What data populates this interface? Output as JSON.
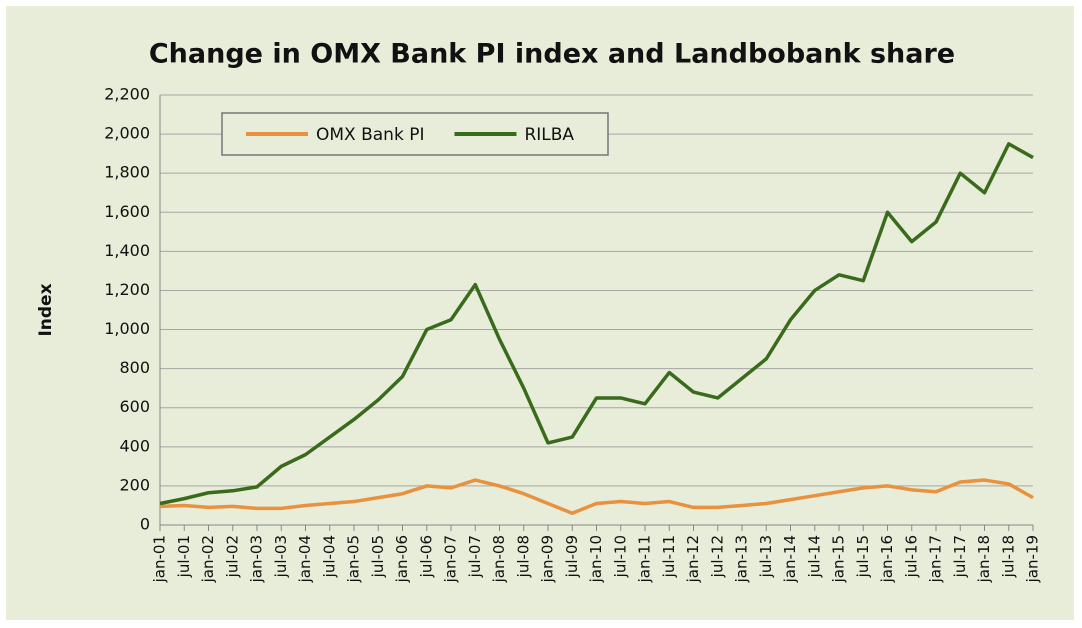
{
  "chart_data": {
    "type": "line",
    "title": "Change in OMX Bank PI index and Landbobank share",
    "y_label": "Index",
    "categories": [
      "jan-01",
      "jul-01",
      "jan-02",
      "jul-02",
      "jan-03",
      "jul-03",
      "jan-04",
      "jul-04",
      "jan-05",
      "jul-05",
      "jan-06",
      "jul-06",
      "jan-07",
      "jul-07",
      "jan-08",
      "jul-08",
      "jan-09",
      "jul-09",
      "jan-10",
      "jul-10",
      "jan-11",
      "jul-11",
      "jan-12",
      "jul-12",
      "jan-13",
      "jul-13",
      "jan-14",
      "jul-14",
      "jan-15",
      "jul-15",
      "jan-16",
      "jul-16",
      "jan-17",
      "jul-17",
      "jan-18",
      "jul-18",
      "jan-19"
    ],
    "series": [
      {
        "name": "OMX Bank PI",
        "color": "#e8913f",
        "values": [
          95,
          100,
          90,
          95,
          85,
          85,
          100,
          110,
          120,
          140,
          160,
          200,
          190,
          230,
          200,
          160,
          110,
          60,
          110,
          120,
          110,
          120,
          90,
          90,
          100,
          110,
          130,
          150,
          170,
          190,
          200,
          180,
          170,
          220,
          230,
          210,
          140
        ]
      },
      {
        "name": "RILBA",
        "color": "#3a6b1c",
        "values": [
          110,
          135,
          165,
          175,
          195,
          300,
          360,
          450,
          540,
          640,
          760,
          1000,
          1050,
          1230,
          950,
          700,
          420,
          450,
          650,
          650,
          620,
          780,
          680,
          650,
          750,
          850,
          1050,
          1200,
          1280,
          1250,
          1600,
          1450,
          1550,
          1800,
          1700,
          1950,
          1880
        ]
      }
    ],
    "ylim": [
      0,
      2200
    ],
    "yticks": [
      0,
      200,
      400,
      600,
      800,
      {
        "value": 1000,
        "label": "1,000"
      },
      {
        "value": 1200,
        "label": "1,200"
      },
      {
        "value": 1400,
        "label": "1,400"
      },
      {
        "value": 1600,
        "label": "1,600"
      },
      {
        "value": 1800,
        "label": "1,800"
      },
      {
        "value": 2000,
        "label": "2,000"
      },
      {
        "value": 2200,
        "label": "2,200"
      }
    ],
    "grid": true,
    "legend": "upper left"
  }
}
